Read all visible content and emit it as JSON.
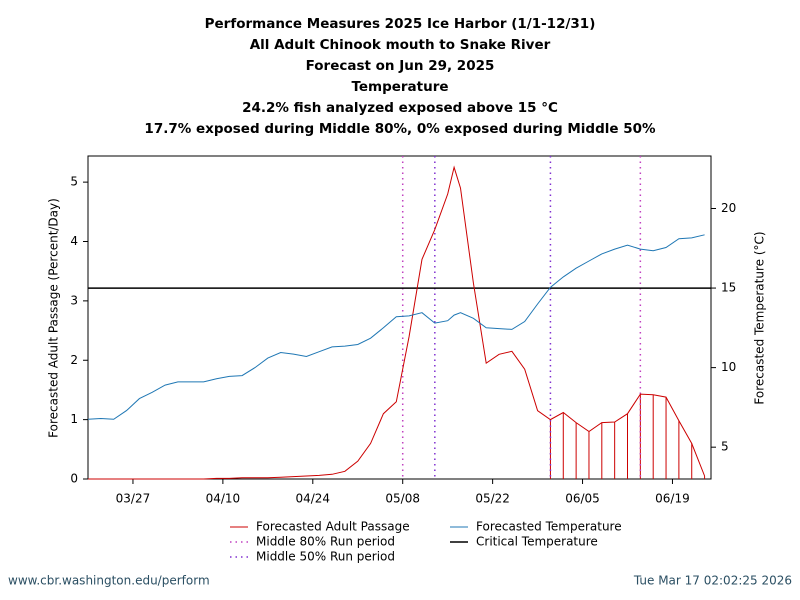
{
  "chart_data": {
    "type": "line",
    "title": "Performance Measures 2025 Ice Harbor (1/1-12/31)",
    "subtitles": [
      "All Adult Chinook mouth to Snake River",
      "Forecast on Jun 29, 2025",
      "Temperature",
      "24.2% fish analyzed exposed above 15 °C",
      "17.7% exposed during Middle 80%, 0% exposed during Middle 50%"
    ],
    "y_label": "Forecasted Adult Passage (Percent/Day)",
    "y2_label": "Forecasted Temperature (°C)",
    "x": [
      "03/20",
      "03/22",
      "03/24",
      "03/26",
      "03/28",
      "03/30",
      "04/01",
      "04/03",
      "04/05",
      "04/07",
      "04/09",
      "04/11",
      "04/13",
      "04/15",
      "04/17",
      "04/19",
      "04/21",
      "04/23",
      "04/25",
      "04/27",
      "04/29",
      "05/01",
      "05/03",
      "05/05",
      "05/07",
      "05/09",
      "05/11",
      "05/13",
      "05/15",
      "05/16",
      "05/17",
      "05/19",
      "05/21",
      "05/23",
      "05/25",
      "05/27",
      "05/29",
      "05/31",
      "06/02",
      "06/04",
      "06/06",
      "06/08",
      "06/10",
      "06/12",
      "06/14",
      "06/16",
      "06/18",
      "06/20",
      "06/22",
      "06/24"
    ],
    "series": [
      {
        "name": "Forecasted Adult Passage",
        "color": "#cc0000",
        "axis": "y",
        "values": [
          0,
          0,
          0,
          0,
          0,
          0,
          0,
          0,
          0,
          0,
          0.01,
          0.01,
          0.02,
          0.02,
          0.02,
          0.03,
          0.04,
          0.05,
          0.06,
          0.08,
          0.13,
          0.3,
          0.6,
          1.1,
          1.3,
          2.4,
          3.7,
          4.2,
          4.8,
          5.25,
          4.9,
          3.3,
          1.95,
          2.1,
          2.15,
          1.85,
          1.15,
          1.0,
          1.12,
          0.95,
          0.8,
          0.95,
          0.96,
          1.1,
          1.43,
          1.42,
          1.38,
          0.98,
          0.6,
          0.05
        ]
      },
      {
        "name": "Forecasted Temperature",
        "color": "#1f77b4",
        "axis": "y2",
        "values": [
          6.75,
          6.8,
          6.75,
          7.3,
          8.05,
          8.45,
          8.9,
          9.1,
          9.1,
          9.1,
          9.3,
          9.45,
          9.5,
          10.0,
          10.6,
          10.95,
          10.85,
          10.7,
          11.0,
          11.3,
          11.35,
          11.45,
          11.85,
          12.5,
          13.2,
          13.25,
          13.45,
          12.8,
          12.95,
          13.3,
          13.45,
          13.1,
          12.5,
          12.45,
          12.4,
          12.9,
          14.0,
          15.05,
          15.7,
          16.25,
          16.7,
          17.15,
          17.45,
          17.7,
          17.45,
          17.35,
          17.55,
          18.1,
          18.15,
          18.35
        ]
      }
    ],
    "reference_lines": [
      {
        "name": "Critical Temperature",
        "value": 15,
        "axis": "y2",
        "color": "#000000"
      }
    ],
    "periods": [
      {
        "name": "Middle 80% Run period",
        "color": "#c040c0",
        "x": [
          "05/08",
          "06/14"
        ]
      },
      {
        "name": "Middle 50% Run period",
        "color": "#8030d0",
        "x": [
          "05/13",
          "05/31"
        ]
      }
    ],
    "xlim": [
      "03/20",
      "06/25"
    ],
    "xticks": [
      "03/27",
      "04/10",
      "04/24",
      "05/08",
      "05/22",
      "06/05",
      "06/19"
    ],
    "ylim": [
      0,
      5.44
    ],
    "yticks": [
      0,
      1,
      2,
      3,
      4,
      5
    ],
    "y2lim": [
      3,
      23.3
    ],
    "y2ticks": [
      5,
      10,
      15,
      20
    ],
    "source": "www.cbr.washington.edu/perform",
    "timestamp": "Tue Mar 17 02:02:25 2026"
  }
}
